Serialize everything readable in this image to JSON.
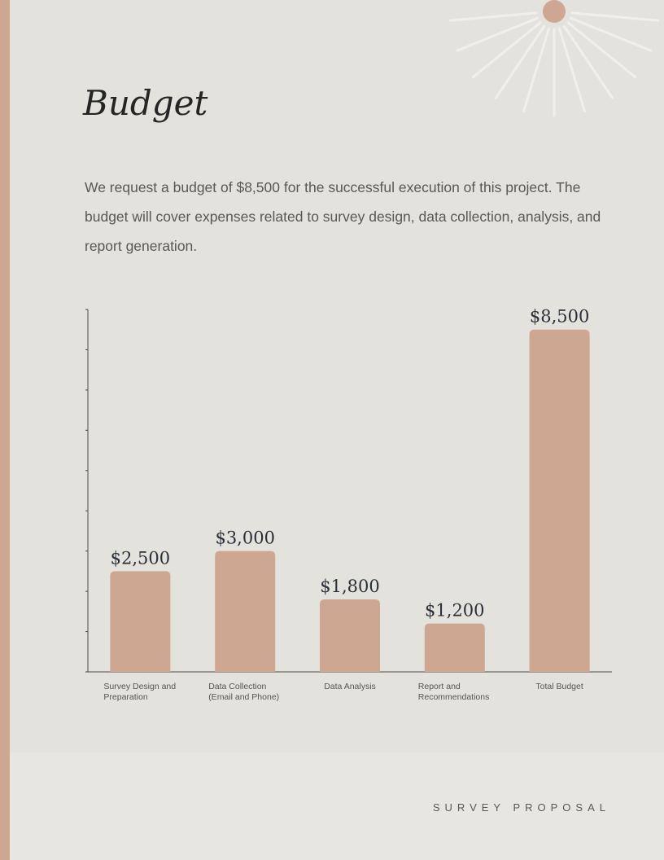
{
  "document": {
    "title": "Budget",
    "intro": "We request a budget of $8,500 for the successful execution of this project. The budget will cover expenses related to survey design, data collection, analysis, and report generation.",
    "footer": "SURVEY PROPOSAL"
  },
  "colors": {
    "accent": "#cea793",
    "panel": "#e3e2dc",
    "footer_bg": "#e8e6e2",
    "text": "#252525",
    "muted": "#5a5856"
  },
  "chart_data": {
    "type": "bar",
    "categories": [
      [
        "Survey Design and",
        "Preparation"
      ],
      [
        "Data Collection",
        "(Email and Phone)"
      ],
      [
        "Data Analysis"
      ],
      [
        "Report and",
        "Recommendations"
      ],
      [
        "Total Budget"
      ]
    ],
    "values": [
      2500,
      3000,
      1800,
      1200,
      8500
    ],
    "value_labels": [
      "$2,500",
      "$3,000",
      "$1,800",
      "$1,200",
      "$8,500"
    ],
    "ylim": [
      0,
      9000
    ],
    "y_tick_step": 1000,
    "grid": false,
    "legend": "none"
  }
}
